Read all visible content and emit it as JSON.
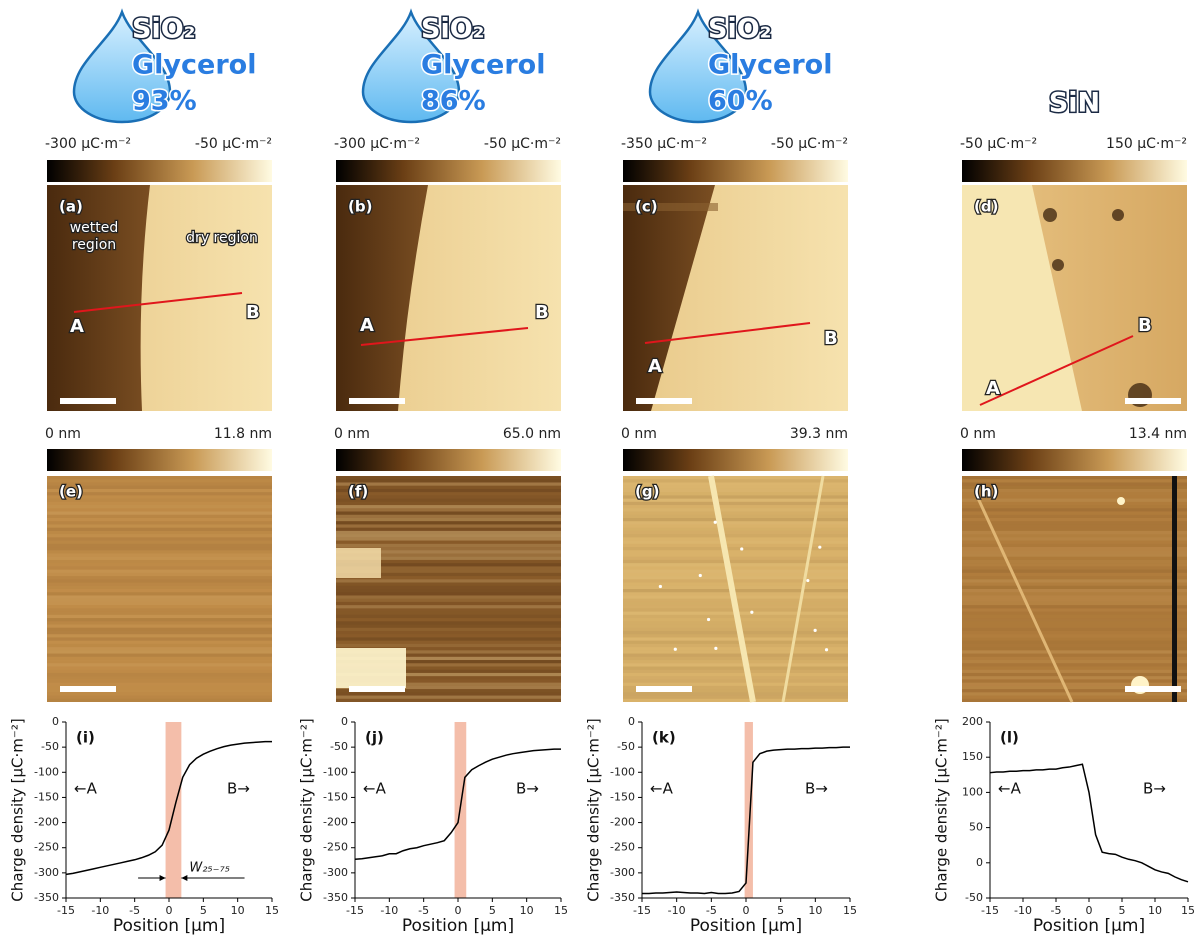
{
  "panels": [
    {
      "header": [
        "SiO₂",
        "Glycerol",
        "93%"
      ],
      "charge_scale": [
        "-300 μC·m⁻²",
        "-50 μC·m⁻²"
      ],
      "charge_label": "(a)",
      "points": [
        "A",
        "B"
      ],
      "regions": [
        "wetted",
        "region",
        "dry region"
      ],
      "height_scale": [
        "0 nm",
        "11.8 nm"
      ],
      "height_label": "(e)"
    },
    {
      "header": [
        "SiO₂",
        "Glycerol",
        "86%"
      ],
      "charge_scale": [
        "-300 μC·m⁻²",
        "-50 μC·m⁻²"
      ],
      "charge_label": "(b)",
      "points": [
        "A",
        "B"
      ],
      "height_scale": [
        "0 nm",
        "65.0 nm"
      ],
      "height_label": "(f)"
    },
    {
      "header": [
        "SiO₂",
        "Glycerol",
        "60%"
      ],
      "charge_scale": [
        "-350 μC·m⁻²",
        "-50 μC·m⁻²"
      ],
      "charge_label": "(c)",
      "points": [
        "A",
        "B"
      ],
      "height_scale": [
        "0 nm",
        "39.3 nm"
      ],
      "height_label": "(g)"
    },
    {
      "header": [
        "SiN"
      ],
      "charge_scale": [
        "-50 μC·m⁻²",
        "150 μC·m⁻²"
      ],
      "charge_label": "(d)",
      "points": [
        "A",
        "B"
      ],
      "height_scale": [
        "0 nm",
        "13.4 nm"
      ],
      "height_label": "(h)"
    }
  ],
  "chart_data": [
    {
      "type": "line",
      "panel_label": "(i)",
      "xlabel": "Position [μm]",
      "ylabel": "Charge density [μC·m⁻²]",
      "left_label": "←A",
      "right_label": "B→",
      "width_label": "W₂₅₋₇₅",
      "x": [
        -15,
        -14,
        -13,
        -12,
        -11,
        -10,
        -9,
        -8,
        -7,
        -6,
        -5,
        -4,
        -3,
        -2,
        -1,
        0,
        1,
        2,
        3,
        4,
        5,
        6,
        7,
        8,
        9,
        10,
        11,
        12,
        13,
        14,
        15
      ],
      "values": [
        -303,
        -301,
        -298,
        -295,
        -292,
        -289,
        -286,
        -283,
        -280,
        -277,
        -274,
        -270,
        -265,
        -258,
        -245,
        -215,
        -160,
        -110,
        -85,
        -72,
        -64,
        -58,
        -53,
        -49,
        -46,
        -44,
        -42,
        -41,
        -40,
        -39,
        -39
      ],
      "color": "#000000",
      "band": [
        -0.5,
        1.8
      ],
      "band_color": "#f2b39b",
      "xlim": [
        -15,
        15
      ],
      "ylim": [
        -350,
        0
      ],
      "xticks": [
        -15,
        -10,
        -5,
        0,
        5,
        10,
        15
      ],
      "yticks": [
        -350,
        -300,
        -250,
        -200,
        -150,
        -100,
        -50,
        0
      ]
    },
    {
      "type": "line",
      "panel_label": "(j)",
      "xlabel": "Position [μm]",
      "ylabel": "Charge density [μC·m⁻²]",
      "left_label": "←A",
      "right_label": "B→",
      "x": [
        -15,
        -14,
        -13,
        -12,
        -11,
        -10,
        -9,
        -8,
        -7,
        -6,
        -5,
        -4,
        -3,
        -2,
        -1,
        0,
        1,
        2,
        3,
        4,
        5,
        6,
        7,
        8,
        9,
        10,
        11,
        12,
        13,
        14,
        15
      ],
      "values": [
        -273,
        -272,
        -270,
        -268,
        -266,
        -262,
        -262,
        -256,
        -252,
        -250,
        -246,
        -243,
        -240,
        -236,
        -220,
        -200,
        -110,
        -95,
        -87,
        -80,
        -74,
        -70,
        -66,
        -63,
        -61,
        -59,
        -57,
        -56,
        -55,
        -54,
        -54
      ],
      "color": "#000000",
      "band": [
        -0.5,
        1.2
      ],
      "band_color": "#f2b39b",
      "xlim": [
        -15,
        15
      ],
      "ylim": [
        -350,
        0
      ],
      "xticks": [
        -15,
        -10,
        -5,
        0,
        5,
        10,
        15
      ],
      "yticks": [
        -350,
        -300,
        -250,
        -200,
        -150,
        -100,
        -50,
        0
      ]
    },
    {
      "type": "line",
      "panel_label": "(k)",
      "xlabel": "Position [μm]",
      "ylabel": "Charge density [μC·m⁻²]",
      "left_label": "←A",
      "right_label": "B→",
      "x": [
        -15,
        -14,
        -13,
        -12,
        -11,
        -10,
        -9,
        -8,
        -7,
        -6,
        -5,
        -4,
        -3,
        -2,
        -1,
        0,
        1,
        2,
        3,
        4,
        5,
        6,
        7,
        8,
        9,
        10,
        11,
        12,
        13,
        14,
        15
      ],
      "values": [
        -341,
        -341,
        -340,
        -340,
        -339,
        -338,
        -339,
        -340,
        -340,
        -341,
        -339,
        -341,
        -341,
        -340,
        -337,
        -320,
        -80,
        -63,
        -58,
        -56,
        -55,
        -54,
        -54,
        -53,
        -53,
        -52,
        -52,
        -51,
        -51,
        -50,
        -50
      ],
      "color": "#000000",
      "band": [
        -0.2,
        1
      ],
      "band_color": "#f2b39b",
      "xlim": [
        -15,
        15
      ],
      "ylim": [
        -350,
        0
      ],
      "xticks": [
        -15,
        -10,
        -5,
        0,
        5,
        10,
        15
      ],
      "yticks": [
        -350,
        -300,
        -250,
        -200,
        -150,
        -100,
        -50,
        0
      ]
    },
    {
      "type": "line",
      "panel_label": "(l)",
      "xlabel": "Position [μm]",
      "ylabel": "Charge density [μC·m⁻²]",
      "left_label": "←A",
      "right_label": "B→",
      "x": [
        -15,
        -14,
        -13,
        -12,
        -11,
        -10,
        -9,
        -8,
        -7,
        -6,
        -5,
        -4,
        -3,
        -2,
        -1,
        0,
        1,
        2,
        3,
        4,
        5,
        6,
        7,
        8,
        9,
        10,
        11,
        12,
        13,
        14,
        15
      ],
      "values": [
        128,
        129,
        129,
        130,
        130,
        131,
        131,
        132,
        132,
        133,
        133,
        135,
        136,
        138,
        140,
        100,
        40,
        15,
        13,
        12,
        8,
        5,
        3,
        0,
        -5,
        -10,
        -13,
        -15,
        -20,
        -24,
        -27
      ],
      "color": "#000000",
      "xlim": [
        -15,
        15
      ],
      "ylim": [
        -50,
        200
      ],
      "xticks": [
        -15,
        -10,
        -5,
        0,
        5,
        10,
        15
      ],
      "yticks": [
        -50,
        0,
        50,
        100,
        150,
        200
      ]
    }
  ]
}
